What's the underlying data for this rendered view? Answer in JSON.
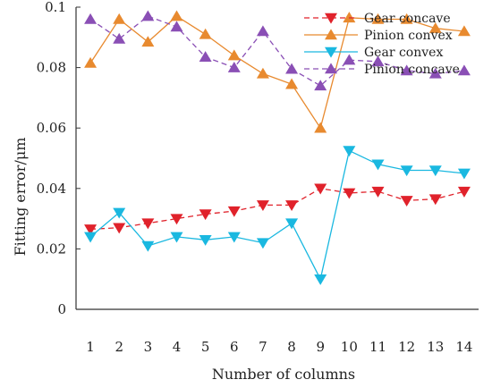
{
  "chart_data": {
    "type": "line",
    "xlabel": "Number of columns",
    "ylabel": "Fitting error/μm",
    "x": [
      1,
      2,
      3,
      4,
      5,
      6,
      7,
      8,
      9,
      10,
      11,
      12,
      13,
      14
    ],
    "xlim": [
      0.5,
      14.5
    ],
    "ylim": [
      0,
      0.1
    ],
    "yticks": [
      0,
      0.02,
      0.04,
      0.06,
      0.08,
      0.1
    ],
    "ytick_labels": [
      "0",
      "0.02",
      "0.04",
      "0.06",
      "0.08",
      "0.1"
    ],
    "xtick_labels": [
      "1",
      "2",
      "3",
      "4",
      "5",
      "6",
      "7",
      "8",
      "9",
      "10",
      "11",
      "12",
      "13",
      "14"
    ],
    "grid": false,
    "legend_position": "top-right",
    "series": [
      {
        "name": "Gear concave",
        "color": "#e0222b",
        "line_style": "dashed",
        "marker": "triangle-down",
        "values": [
          0.0265,
          0.027,
          0.0285,
          0.03,
          0.0315,
          0.0325,
          0.0345,
          0.0345,
          0.04,
          0.0385,
          0.039,
          0.036,
          0.0365,
          0.039
        ]
      },
      {
        "name": "Pinion convex",
        "color": "#e88a2f",
        "line_style": "solid",
        "marker": "triangle-up",
        "values": [
          0.0815,
          0.096,
          0.0885,
          0.097,
          0.091,
          0.084,
          0.078,
          0.0745,
          0.06,
          0.0965,
          0.096,
          0.096,
          0.093,
          0.092
        ]
      },
      {
        "name": "Gear convex",
        "color": "#1ab8e0",
        "line_style": "solid",
        "marker": "triangle-down",
        "values": [
          0.024,
          0.032,
          0.021,
          0.024,
          0.023,
          0.024,
          0.022,
          0.0285,
          0.01,
          0.0525,
          0.048,
          0.046,
          0.046,
          0.045
        ]
      },
      {
        "name": "Pinion concave",
        "color": "#8a4fb5",
        "line_style": "dashed",
        "marker": "triangle-up",
        "values": [
          0.096,
          0.0895,
          0.097,
          0.0935,
          0.0835,
          0.08,
          0.092,
          0.0795,
          0.074,
          0.0825,
          0.082,
          0.079,
          0.078,
          0.079
        ]
      }
    ]
  }
}
